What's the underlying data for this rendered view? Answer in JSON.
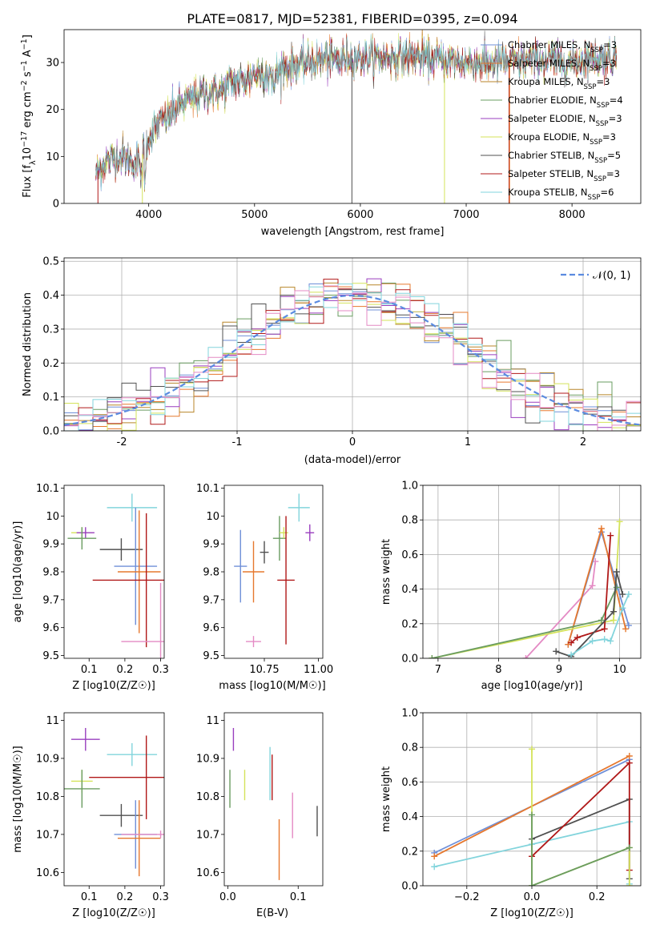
{
  "figure": {
    "title": "PLATE=0817, MJD=52381, FIBERID=0395, z=0.094"
  },
  "colors": {
    "chabrier_miles": "#6f8fd8",
    "salpeter_miles": "#e6782e",
    "kroupa_miles": "#b8862a",
    "chabrier_elodie": "#6a9c60",
    "salpeter_elodie": "#9a3fbf",
    "kroupa_elodie": "#d4e35a",
    "chabrier_stelib": "#505050",
    "salpeter_stelib": "#b01818",
    "kroupa_stelib": "#82d4dc",
    "pink": "#e48ac4",
    "gauss": "#5b8be0"
  },
  "chart_data": [
    {
      "id": "spectrum",
      "type": "line",
      "xlabel": "wavelength [Angstrom, rest frame]",
      "ylabel_parts": [
        "Flux [f",
        "λ",
        "10",
        "−17",
        " erg cm",
        "−2",
        " s",
        "−1",
        " A",
        "−1",
        "]"
      ],
      "xlim": [
        3200,
        8650
      ],
      "ylim": [
        0,
        37
      ],
      "xticks": [
        4000,
        5000,
        6000,
        7000,
        8000
      ],
      "yticks": [
        0,
        10,
        20,
        30
      ],
      "legend_position": "upper-right",
      "series": [
        {
          "label": "Chabrier MILES",
          "nssp": "3",
          "color_key": "chabrier_miles"
        },
        {
          "label": "Salpeter MILES",
          "nssp": "3",
          "color_key": "salpeter_miles"
        },
        {
          "label": "Kroupa MILES",
          "nssp": "3",
          "color_key": "kroupa_miles"
        },
        {
          "label": "Chabrier ELODIE",
          "nssp": "4",
          "color_key": "chabrier_elodie"
        },
        {
          "label": "Salpeter ELODIE",
          "nssp": "3",
          "color_key": "salpeter_elodie"
        },
        {
          "label": "Kroupa ELODIE",
          "nssp": "3",
          "color_key": "kroupa_elodie"
        },
        {
          "label": "Chabrier STELIB",
          "nssp": "5",
          "color_key": "chabrier_stelib"
        },
        {
          "label": "Salpeter STELIB",
          "nssp": "3",
          "color_key": "salpeter_stelib"
        },
        {
          "label": "Kroupa STELIB",
          "nssp": "6",
          "color_key": "kroupa_stelib"
        }
      ],
      "continuum": [
        [
          3500,
          6.5
        ],
        [
          3600,
          9
        ],
        [
          3700,
          10
        ],
        [
          3800,
          9.5
        ],
        [
          3900,
          8.5
        ],
        [
          3950,
          11
        ],
        [
          4000,
          14
        ],
        [
          4100,
          17
        ],
        [
          4200,
          19
        ],
        [
          4300,
          21
        ],
        [
          4400,
          22
        ],
        [
          4500,
          23.5
        ],
        [
          4700,
          24
        ],
        [
          4800,
          26
        ],
        [
          4900,
          26
        ],
        [
          5000,
          27.5
        ],
        [
          5100,
          28
        ],
        [
          5200,
          27.5
        ],
        [
          5300,
          29
        ],
        [
          5400,
          29.5
        ],
        [
          5500,
          30
        ],
        [
          5700,
          31
        ],
        [
          5800,
          30.5
        ],
        [
          5900,
          31
        ],
        [
          6000,
          31
        ],
        [
          6200,
          31
        ],
        [
          6400,
          31.5
        ],
        [
          6600,
          31
        ],
        [
          6800,
          30.5
        ],
        [
          7000,
          30
        ],
        [
          7200,
          30
        ],
        [
          7400,
          30
        ],
        [
          7600,
          30.5
        ],
        [
          7800,
          30.5
        ],
        [
          8000,
          30
        ],
        [
          8200,
          31
        ],
        [
          8400,
          31
        ]
      ]
    },
    {
      "id": "residuals",
      "type": "histogram",
      "xlabel": "(data-model)/error",
      "ylabel": "Normed distribution",
      "xlim": [
        -2.5,
        2.5
      ],
      "ylim": [
        0,
        0.51
      ],
      "xticks": [
        -2,
        -1,
        0,
        1,
        2
      ],
      "yticks": [
        0.0,
        0.1,
        0.2,
        0.3,
        0.4,
        0.5
      ],
      "ytick_labels": [
        "0.0",
        "0.1",
        "0.2",
        "0.3",
        "0.4",
        "0.5"
      ],
      "grid": true,
      "legend_position": "upper-right",
      "reference_label": "𝒩(0, 1)",
      "bins": 40
    },
    {
      "id": "age_vs_Z",
      "type": "scatter",
      "xlabel": "Z [log10(Z/Z☉)]",
      "ylabel": "age  [log10(age/yr)]",
      "xlim": [
        0.03,
        0.31
      ],
      "ylim": [
        9.49,
        10.11
      ],
      "xticks": [
        0.1,
        0.2,
        0.3
      ],
      "yticks": [
        9.5,
        9.6,
        9.7,
        9.8,
        9.9,
        10.0,
        10.1
      ],
      "points": [
        {
          "x": 0.08,
          "y": 9.94,
          "xerr": 0.03,
          "yerr": 0.02,
          "color_key": "kroupa_elodie"
        },
        {
          "x": 0.09,
          "y": 9.94,
          "xerr": 0.025,
          "yerr": 0.02,
          "color_key": "salpeter_elodie"
        },
        {
          "x": 0.08,
          "y": 9.92,
          "xerr": 0.04,
          "yerr": 0.04,
          "color_key": "chabrier_elodie"
        },
        {
          "x": 0.22,
          "y": 10.03,
          "xerr": 0.07,
          "yerr": 0.05,
          "color_key": "kroupa_stelib"
        },
        {
          "x": 0.19,
          "y": 9.88,
          "xerr": 0.06,
          "yerr": 0.04,
          "color_key": "chabrier_stelib"
        },
        {
          "x": 0.23,
          "y": 9.82,
          "xerr": 0.06,
          "yerr": 0.21,
          "color_key": "chabrier_miles"
        },
        {
          "x": 0.24,
          "y": 9.8,
          "xerr": 0.06,
          "yerr": 0.22,
          "color_key": "salpeter_miles"
        },
        {
          "x": 0.26,
          "y": 9.77,
          "xerr": 0.15,
          "yerr": 0.24,
          "color_key": "salpeter_stelib"
        },
        {
          "x": 0.3,
          "y": 9.55,
          "xerr": 0.11,
          "yerr": 0.21,
          "color_key": "pink"
        }
      ]
    },
    {
      "id": "age_vs_mass",
      "type": "scatter",
      "xlabel": "mass [log10(M/M☉)]",
      "ylabel": "",
      "xlim": [
        10.565,
        11.02
      ],
      "ylim": [
        9.49,
        10.11
      ],
      "xticks": [
        10.75,
        11.0
      ],
      "xtick_labels": [
        "10.75",
        "11.00"
      ],
      "yticks": [
        9.5,
        9.6,
        9.7,
        9.8,
        9.9,
        10.0,
        10.1
      ],
      "points": [
        {
          "x": 10.7,
          "y": 9.8,
          "xerr": 0.05,
          "yerr": 0.11,
          "color_key": "salpeter_miles"
        },
        {
          "x": 10.64,
          "y": 9.82,
          "xerr": 0.03,
          "yerr": 0.13,
          "color_key": "chabrier_miles"
        },
        {
          "x": 10.7,
          "y": 9.55,
          "xerr": 0.035,
          "yerr": 0.02,
          "color_key": "pink"
        },
        {
          "x": 10.75,
          "y": 9.87,
          "xerr": 0.02,
          "yerr": 0.04,
          "color_key": "chabrier_stelib"
        },
        {
          "x": 10.82,
          "y": 9.92,
          "xerr": 0.03,
          "yerr": 0.08,
          "color_key": "chabrier_elodie"
        },
        {
          "x": 10.84,
          "y": 9.94,
          "xerr": 0.02,
          "yerr": 0.02,
          "color_key": "kroupa_elodie"
        },
        {
          "x": 10.85,
          "y": 9.77,
          "xerr": 0.04,
          "yerr": 0.23,
          "color_key": "salpeter_stelib"
        },
        {
          "x": 10.91,
          "y": 10.03,
          "xerr": 0.05,
          "yerr": 0.05,
          "color_key": "kroupa_stelib"
        },
        {
          "x": 10.96,
          "y": 9.94,
          "xerr": 0.02,
          "yerr": 0.03,
          "color_key": "salpeter_elodie"
        }
      ]
    },
    {
      "id": "weight_vs_age",
      "type": "line",
      "xlabel": "age  [log10(age/yr)]",
      "ylabel": "mass weight",
      "xlim": [
        6.75,
        10.35
      ],
      "ylim": [
        0,
        1
      ],
      "xticks": [
        7,
        8,
        9,
        10
      ],
      "yticks": [
        0.0,
        0.2,
        0.4,
        0.6,
        0.8,
        1.0
      ],
      "ytick_labels": [
        "0.0",
        "0.2",
        "0.4",
        "0.6",
        "0.8",
        "1.0"
      ],
      "grid": true,
      "series": [
        {
          "color_key": "pink",
          "x": [
            8.45,
            9.55,
            9.6
          ],
          "y": [
            0.0,
            0.42,
            0.56
          ]
        },
        {
          "color_key": "chabrier_miles",
          "x": [
            9.15,
            9.7,
            10.15
          ],
          "y": [
            0.08,
            0.73,
            0.19
          ]
        },
        {
          "color_key": "salpeter_miles",
          "x": [
            9.15,
            9.7,
            10.1
          ],
          "y": [
            0.08,
            0.75,
            0.17
          ]
        },
        {
          "color_key": "kroupa_elodie",
          "x": [
            6.9,
            9.9,
            10.0
          ],
          "y": [
            0.0,
            0.22,
            0.79
          ]
        },
        {
          "color_key": "chabrier_elodie",
          "x": [
            6.9,
            9.7,
            9.95
          ],
          "y": [
            0.0,
            0.22,
            0.41
          ]
        },
        {
          "color_key": "salpeter_stelib",
          "x": [
            9.2,
            9.3,
            9.75,
            9.85
          ],
          "y": [
            0.09,
            0.12,
            0.17,
            0.71
          ]
        },
        {
          "color_key": "chabrier_stelib",
          "x": [
            8.95,
            9.2,
            9.9,
            9.95,
            10.05
          ],
          "y": [
            0.04,
            0.01,
            0.27,
            0.5,
            0.37
          ]
        },
        {
          "color_key": "kroupa_stelib",
          "x": [
            9.2,
            9.55,
            9.75,
            9.85,
            10.05,
            10.15
          ],
          "y": [
            0.02,
            0.1,
            0.11,
            0.1,
            0.29,
            0.37
          ]
        }
      ]
    },
    {
      "id": "mass_vs_Z",
      "type": "scatter",
      "xlabel": "Z [log10(Z/Z☉)]",
      "ylabel": "mass [log10(M/M☉)]",
      "xlim": [
        0.03,
        0.31
      ],
      "ylim": [
        10.565,
        11.02
      ],
      "xticks": [
        0.1,
        0.2,
        0.3
      ],
      "yticks": [
        10.6,
        10.7,
        10.8,
        10.9,
        11.0
      ],
      "points": [
        {
          "x": 0.09,
          "y": 10.95,
          "xerr": 0.04,
          "yerr": 0.03,
          "color_key": "salpeter_elodie"
        },
        {
          "x": 0.08,
          "y": 10.84,
          "xerr": 0.03,
          "yerr": 0.03,
          "color_key": "kroupa_elodie"
        },
        {
          "x": 0.08,
          "y": 10.82,
          "xerr": 0.05,
          "yerr": 0.05,
          "color_key": "chabrier_elodie"
        },
        {
          "x": 0.22,
          "y": 10.91,
          "xerr": 0.07,
          "yerr": 0.03,
          "color_key": "kroupa_stelib"
        },
        {
          "x": 0.19,
          "y": 10.75,
          "xerr": 0.06,
          "yerr": 0.03,
          "color_key": "chabrier_stelib"
        },
        {
          "x": 0.26,
          "y": 10.85,
          "xerr": 0.16,
          "yerr": 0.11,
          "color_key": "salpeter_stelib"
        },
        {
          "x": 0.23,
          "y": 10.7,
          "xerr": 0.06,
          "yerr": 0.09,
          "color_key": "chabrier_miles"
        },
        {
          "x": 0.24,
          "y": 10.69,
          "xerr": 0.06,
          "yerr": 0.1,
          "color_key": "salpeter_miles"
        },
        {
          "x": 0.3,
          "y": 10.7,
          "xerr": 0.11,
          "yerr": 0.01,
          "color_key": "pink"
        }
      ]
    },
    {
      "id": "mass_vs_EBV",
      "type": "scatter",
      "xlabel": "E(B-V)",
      "ylabel": "",
      "xlim": [
        -0.005,
        0.135
      ],
      "ylim": [
        10.565,
        11.02
      ],
      "xticks": [
        0.0,
        0.1
      ],
      "xtick_labels": [
        "0.0",
        "0.1"
      ],
      "yticks": [
        10.6,
        10.7,
        10.8,
        10.9,
        11.0
      ],
      "points": [
        {
          "x": 0.003,
          "y": 10.82,
          "yerr": 0.05,
          "color_key": "chabrier_elodie"
        },
        {
          "x": 0.008,
          "y": 10.95,
          "yerr": 0.03,
          "color_key": "salpeter_elodie"
        },
        {
          "x": 0.024,
          "y": 10.83,
          "yerr": 0.04,
          "color_key": "kroupa_elodie"
        },
        {
          "x": 0.06,
          "y": 10.86,
          "yerr": 0.07,
          "color_key": "kroupa_stelib"
        },
        {
          "x": 0.063,
          "y": 10.85,
          "yerr": 0.06,
          "color_key": "salpeter_stelib"
        },
        {
          "x": 0.073,
          "y": 10.66,
          "yerr": 0.08,
          "color_key": "salpeter_miles"
        },
        {
          "x": 0.092,
          "y": 10.75,
          "yerr": 0.06,
          "color_key": "pink"
        },
        {
          "x": 0.127,
          "y": 10.735,
          "yerr": 0.04,
          "color_key": "chabrier_stelib"
        }
      ]
    },
    {
      "id": "weight_vs_Z",
      "type": "line",
      "xlabel": "Z [log10(Z/Z☉)]",
      "ylabel": "mass weight",
      "xlim": [
        -0.335,
        0.335
      ],
      "ylim": [
        0,
        1
      ],
      "xticks": [
        -0.2,
        0.0,
        0.2
      ],
      "xtick_labels": [
        "−0.2",
        "0.0",
        "0.2"
      ],
      "yticks": [
        0.0,
        0.2,
        0.4,
        0.6,
        0.8,
        1.0
      ],
      "ytick_labels": [
        "0.0",
        "0.2",
        "0.4",
        "0.6",
        "0.8",
        "1.0"
      ],
      "grid": true,
      "series": [
        {
          "color_key": "chabrier_miles",
          "x": [
            -0.3,
            0.3
          ],
          "y": [
            0.19,
            0.73
          ]
        },
        {
          "color_key": "salpeter_miles",
          "x": [
            -0.3,
            0.3
          ],
          "y": [
            0.17,
            0.75
          ]
        },
        {
          "color_key": "kroupa_stelib",
          "x": [
            -0.3,
            0.0,
            0.3,
            0.3
          ],
          "y": [
            0.11,
            0.24,
            0.37,
            0.01
          ]
        },
        {
          "color_key": "chabrier_stelib",
          "x": [
            0.0,
            0.3,
            0.3
          ],
          "y": [
            0.27,
            0.5,
            0.04
          ]
        },
        {
          "color_key": "salpeter_stelib",
          "x": [
            0.0,
            0.3,
            0.3
          ],
          "y": [
            0.17,
            0.71,
            0.09
          ]
        },
        {
          "color_key": "kroupa_elodie",
          "x": [
            0.0,
            0.0,
            0.3,
            0.3
          ],
          "y": [
            0.79,
            0.0,
            0.22,
            0.0
          ]
        },
        {
          "color_key": "chabrier_elodie",
          "x": [
            0.0,
            0.0,
            0.3
          ],
          "y": [
            0.41,
            0.0,
            0.22
          ]
        }
      ]
    }
  ]
}
